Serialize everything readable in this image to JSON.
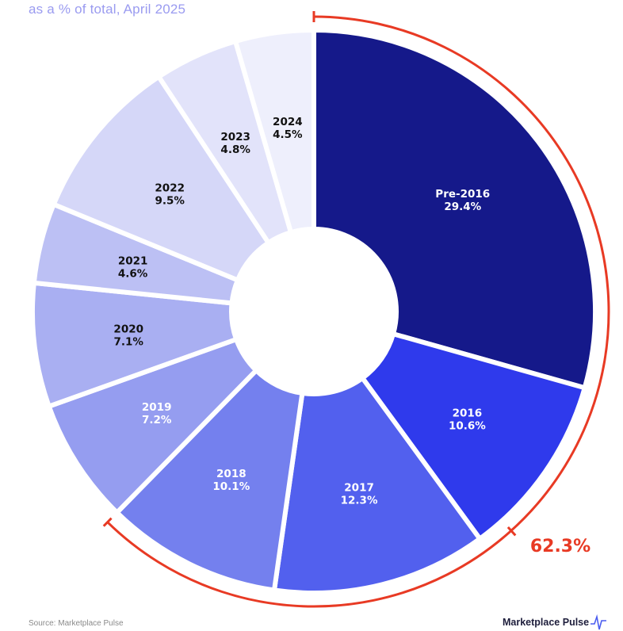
{
  "subtitle": "as a % of total, April 2025",
  "source": "Source: Marketplace Pulse",
  "brand": "Marketplace Pulse",
  "chart_data": {
    "type": "pie",
    "variant": "donut",
    "unit": "%",
    "slices": [
      {
        "label": "Pre-2016",
        "value": 29.4,
        "color": "#15198a",
        "text_color": "#ffffff"
      },
      {
        "label": "2016",
        "value": 10.6,
        "color": "#2f3aec",
        "text_color": "#ffffff"
      },
      {
        "label": "2017",
        "value": 12.3,
        "color": "#5260ee",
        "text_color": "#ffffff"
      },
      {
        "label": "2018",
        "value": 10.1,
        "color": "#7480ee",
        "text_color": "#ffffff"
      },
      {
        "label": "2019",
        "value": 7.2,
        "color": "#959df0",
        "text_color": "#ffffff"
      },
      {
        "label": "2020",
        "value": 7.1,
        "color": "#a9aff2",
        "text_color": "#111111"
      },
      {
        "label": "2021",
        "value": 4.6,
        "color": "#bcc0f4",
        "text_color": "#111111"
      },
      {
        "label": "2022",
        "value": 9.5,
        "color": "#d5d7f8",
        "text_color": "#111111"
      },
      {
        "label": "2023",
        "value": 4.8,
        "color": "#e2e3fa",
        "text_color": "#111111"
      },
      {
        "label": "2024",
        "value": 4.5,
        "color": "#eeeffc",
        "text_color": "#111111"
      }
    ],
    "highlight": {
      "label": "62.3%",
      "covers": [
        "Pre-2016",
        "2016",
        "2017",
        "2018"
      ],
      "color": "#e83a24"
    }
  }
}
